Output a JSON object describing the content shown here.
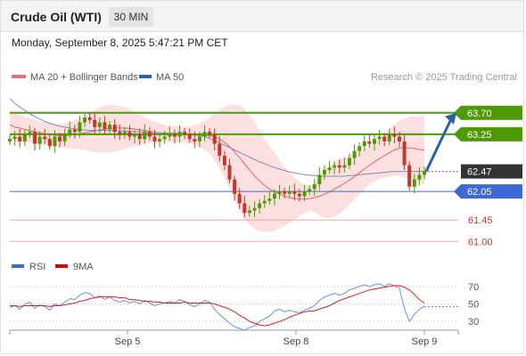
{
  "header": {
    "title": "Crude Oil (WTI)",
    "timeframe": "30 MIN"
  },
  "datetime": "Monday, September 8, 2025 5:47:21 PM CET",
  "legend": {
    "ma20": "MA 20 + Bollinger Bands",
    "ma50": "MA 50",
    "credit": "Research © 2025 Trading Central",
    "rsi": "RSI",
    "ma9": "9MA"
  },
  "colors": {
    "green": "#4e9a06",
    "blue": "#3d68d8",
    "red": "#e57373",
    "candle_up": "#4e9a06",
    "candle_down": "#c0392b",
    "arrow": "#2b5fa8",
    "band": "#fbd5d5",
    "current_label_bg": "#333333"
  },
  "chart_data": [
    {
      "type": "candlestick",
      "x_ticks": [
        "Sep 5",
        "Sep 8",
        "Sep 9"
      ],
      "ylim": [
        60.8,
        64.2
      ],
      "levels": [
        {
          "value": 63.7,
          "label": "63.70",
          "style": "resistance"
        },
        {
          "value": 63.25,
          "label": "63.25",
          "style": "resistance"
        },
        {
          "value": 62.47,
          "label": "62.47",
          "style": "current"
        },
        {
          "value": 62.05,
          "label": "62.05",
          "style": "support"
        },
        {
          "value": 61.45,
          "label": "61.45",
          "style": "support-minor"
        },
        {
          "value": 61.0,
          "label": "61.00",
          "style": "support-minor"
        }
      ],
      "close": [
        63.15,
        63.2,
        63.1,
        63.25,
        63.3,
        63.05,
        63.2,
        63.15,
        63.0,
        63.2,
        63.1,
        63.25,
        63.35,
        63.3,
        63.5,
        63.6,
        63.55,
        63.4,
        63.5,
        63.35,
        63.45,
        63.3,
        63.25,
        63.3,
        63.2,
        63.25,
        63.15,
        63.3,
        63.2,
        63.1,
        63.15,
        63.2,
        63.25,
        63.2,
        63.3,
        63.25,
        63.15,
        63.1,
        63.2,
        63.3,
        63.25,
        63.05,
        62.8,
        62.6,
        62.3,
        62.0,
        61.8,
        61.6,
        61.65,
        61.7,
        61.8,
        61.85,
        61.9,
        62.0,
        62.05,
        62.0,
        62.05,
        62.0,
        61.95,
        62.05,
        62.1,
        62.2,
        62.4,
        62.5,
        62.55,
        62.6,
        62.55,
        62.6,
        62.75,
        62.9,
        63.0,
        63.1,
        63.05,
        63.15,
        63.2,
        63.1,
        63.25,
        63.2,
        63.1,
        62.6,
        62.15,
        62.3,
        62.4,
        62.47
      ],
      "ma20": [
        63.45,
        63.4,
        63.38,
        63.35,
        63.33,
        63.3,
        63.28,
        63.26,
        63.24,
        63.23,
        63.22,
        63.22,
        63.23,
        63.24,
        63.26,
        63.28,
        63.3,
        63.32,
        63.34,
        63.36,
        63.37,
        63.38,
        63.38,
        63.38,
        63.37,
        63.36,
        63.34,
        63.33,
        63.31,
        63.29,
        63.28,
        63.27,
        63.26,
        63.25,
        63.25,
        63.24,
        63.24,
        63.23,
        63.23,
        63.23,
        63.22,
        63.2,
        63.15,
        63.08,
        62.99,
        62.88,
        62.76,
        62.63,
        62.5,
        62.38,
        62.27,
        62.18,
        62.1,
        62.04,
        61.99,
        61.95,
        61.92,
        61.9,
        61.89,
        61.89,
        61.9,
        61.92,
        61.95,
        61.99,
        62.04,
        62.1,
        62.16,
        62.22,
        62.29,
        62.36,
        62.44,
        62.52,
        62.6,
        62.67,
        62.74,
        62.8,
        62.86,
        62.92,
        62.96,
        62.97,
        62.96,
        62.95,
        62.93,
        62.92
      ],
      "ma50": [
        64.0,
        63.9,
        63.82,
        63.75,
        63.68,
        63.62,
        63.57,
        63.52,
        63.48,
        63.45,
        63.42,
        63.4,
        63.38,
        63.36,
        63.35,
        63.34,
        63.33,
        63.33,
        63.33,
        63.33,
        63.33,
        63.33,
        63.32,
        63.32,
        63.31,
        63.31,
        63.3,
        63.3,
        63.29,
        63.29,
        63.28,
        63.28,
        63.27,
        63.27,
        63.26,
        63.26,
        63.25,
        63.24,
        63.22,
        63.2,
        63.16,
        63.12,
        63.07,
        63.02,
        62.97,
        62.92,
        62.87,
        62.82,
        62.77,
        62.72,
        62.67,
        62.63,
        62.59,
        62.55,
        62.52,
        62.49,
        62.46,
        62.44,
        62.42,
        62.4,
        62.39,
        62.38,
        62.37,
        62.37,
        62.37,
        62.37,
        62.37,
        62.37,
        62.38,
        62.39,
        62.4,
        62.41,
        62.42,
        62.43,
        62.44,
        62.45,
        62.46,
        62.47,
        62.47,
        62.47,
        62.47,
        62.47,
        62.47,
        62.47
      ],
      "bb_width": [
        0.3,
        0.3,
        0.28,
        0.27,
        0.26,
        0.25,
        0.25,
        0.24,
        0.24,
        0.24,
        0.25,
        0.26,
        0.28,
        0.3,
        0.33,
        0.36,
        0.4,
        0.44,
        0.47,
        0.5,
        0.5,
        0.49,
        0.47,
        0.44,
        0.4,
        0.36,
        0.32,
        0.28,
        0.25,
        0.22,
        0.2,
        0.18,
        0.17,
        0.17,
        0.17,
        0.17,
        0.18,
        0.2,
        0.25,
        0.3,
        0.38,
        0.5,
        0.62,
        0.75,
        0.88,
        1.0,
        1.1,
        1.15,
        1.15,
        1.12,
        1.05,
        0.98,
        0.9,
        0.82,
        0.72,
        0.62,
        0.52,
        0.44,
        0.36,
        0.3,
        0.26,
        0.3,
        0.4,
        0.5,
        0.55,
        0.58,
        0.58,
        0.55,
        0.52,
        0.48,
        0.45,
        0.42,
        0.4,
        0.4,
        0.42,
        0.46,
        0.5,
        0.54,
        0.58,
        0.62,
        0.66,
        0.68,
        0.7,
        0.72
      ],
      "projection": [
        62.47,
        63.7
      ]
    },
    {
      "type": "line",
      "ylim": [
        20,
        80
      ],
      "y_ticks": [
        "70",
        "50",
        "30"
      ],
      "rsi": [
        46,
        48,
        44,
        50,
        52,
        45,
        49,
        47,
        43,
        50,
        48,
        52,
        56,
        55,
        60,
        63,
        62,
        57,
        59,
        55,
        58,
        54,
        52,
        54,
        51,
        53,
        50,
        54,
        51,
        48,
        50,
        51,
        53,
        51,
        55,
        53,
        49,
        47,
        50,
        54,
        52,
        44,
        38,
        33,
        28,
        24,
        22,
        20,
        23,
        25,
        30,
        33,
        36,
        42,
        44,
        41,
        43,
        41,
        40,
        43,
        45,
        48,
        54,
        58,
        60,
        62,
        60,
        62,
        66,
        68,
        70,
        72,
        70,
        72,
        73,
        70,
        73,
        71,
        68,
        45,
        30,
        38,
        44,
        47
      ],
      "ma9": [
        48,
        48,
        47,
        48,
        48,
        48,
        48,
        48,
        47,
        48,
        48,
        49,
        50,
        51,
        53,
        54,
        56,
        57,
        58,
        58,
        58,
        58,
        57,
        57,
        55,
        55,
        54,
        53,
        53,
        52,
        52,
        51,
        51,
        51,
        51,
        52,
        51,
        51,
        51,
        51,
        51,
        50,
        48,
        46,
        44,
        41,
        37,
        34,
        30,
        28,
        26,
        25,
        26,
        28,
        30,
        32,
        35,
        37,
        39,
        41,
        42,
        42,
        44,
        46,
        48,
        51,
        54,
        56,
        58,
        60,
        62,
        64,
        66,
        67,
        68,
        69,
        70,
        71,
        71,
        69,
        66,
        61,
        55,
        51
      ]
    }
  ]
}
